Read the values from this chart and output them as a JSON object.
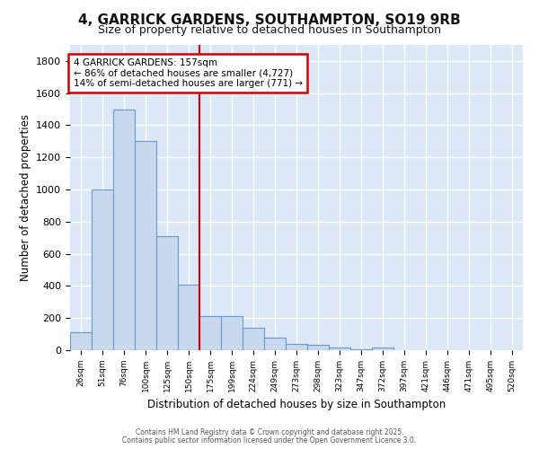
{
  "title1": "4, GARRICK GARDENS, SOUTHAMPTON, SO19 9RB",
  "title2": "Size of property relative to detached houses in Southampton",
  "xlabel": "Distribution of detached houses by size in Southampton",
  "ylabel": "Number of detached properties",
  "categories": [
    "26sqm",
    "51sqm",
    "76sqm",
    "100sqm",
    "125sqm",
    "150sqm",
    "175sqm",
    "199sqm",
    "224sqm",
    "249sqm",
    "273sqm",
    "298sqm",
    "323sqm",
    "347sqm",
    "372sqm",
    "397sqm",
    "421sqm",
    "446sqm",
    "471sqm",
    "495sqm",
    "520sqm"
  ],
  "values": [
    110,
    1000,
    1500,
    1300,
    710,
    410,
    215,
    215,
    140,
    80,
    40,
    35,
    15,
    8,
    15,
    0,
    0,
    0,
    0,
    0,
    0
  ],
  "bar_color": "#c8d8ed",
  "bar_edge_color": "#6699cc",
  "vline_color": "#cc0000",
  "annotation_text": "4 GARRICK GARDENS: 157sqm\n← 86% of detached houses are smaller (4,727)\n14% of semi-detached houses are larger (771) →",
  "annotation_box_color": "#cc0000",
  "ylim": [
    0,
    1900
  ],
  "yticks": [
    0,
    200,
    400,
    600,
    800,
    1000,
    1200,
    1400,
    1600,
    1800
  ],
  "bg_color": "#dce8f5",
  "grid_color": "#ffffff",
  "title_fontsize": 11,
  "subtitle_fontsize": 9,
  "footer1": "Contains HM Land Registry data © Crown copyright and database right 2025.",
  "footer2": "Contains public sector information licensed under the Open Government Licence 3.0."
}
